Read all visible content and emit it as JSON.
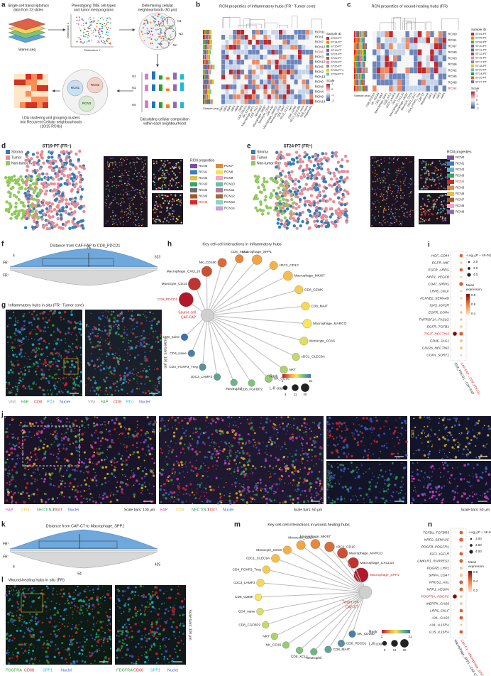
{
  "figure": {
    "a": {
      "letter": "a",
      "step1": [
        "Single-cell transcriptomics",
        "data from 23 slides"
      ],
      "stereo": "Stereo-seq",
      "step2": [
        "Phenotyping TME cell-types",
        "and tumor metaprograms"
      ],
      "dim2": "Dimension 2",
      "dim1": "Dimension 1",
      "step3": [
        "Determining cellular",
        "neighbourhoods (50 µm)"
      ],
      "neigh": [
        "N1",
        "N2",
        "Nn"
      ],
      "bars": [
        "N1",
        "N2",
        "Nn"
      ],
      "step4": [
        "Calculating cellular composition",
        "within each neighbourhood"
      ],
      "rcns": [
        "RCN1",
        "RCN2",
        "RCN3"
      ],
      "step5": [
        "LDA clustering and grouping clusters",
        "into Recurrent Cellular neighbourhoods",
        "(10/15 RCNs)"
      ]
    },
    "b": {
      "letter": "b",
      "title": "RCN properties of inflammatory hubs (FR⁻ Tumor core)",
      "rows": [
        "RCN11",
        "RCN1",
        "RCN7",
        "RCN12",
        "RCN6",
        "RCN3",
        "RCN10",
        "RCN5",
        "RCN2",
        "RCN13",
        "RCN0",
        "RCN8",
        "RCN4",
        "RCN9",
        "RCN14"
      ],
      "highlight": "RCN6",
      "columns": [
        "tMP1",
        "tMP2",
        "tMP3",
        "tMP4",
        "tMP5",
        "tMP6",
        "CD8_PDCD1",
        "NK_CD160",
        "Macrophage_SPP1",
        "CD8_XCL1",
        "Neutrophil",
        "Macrophage_MKI67",
        "Monocyte_CD14",
        "CAF-FAP",
        "Macrophage_MARCO",
        "Monocyte_CD16",
        "CD8_MAIT",
        "cDC2_CD1C",
        "NKT",
        "CD8_GZMK",
        "cDC1_CLEC9A",
        "CD4_naive",
        "CD8_naive",
        "Hepatocyte"
      ],
      "sample_prop": "Sample prop.",
      "sample_id": "Sample ID",
      "samples": [
        "ST09-PT",
        "ST14-PT",
        "ST15-PT",
        "ST19-PT",
        "ST21-PT",
        "ST22-PT",
        "ST23-PT",
        "ST26-PT",
        "ST28-PT1",
        "ST28-PT2"
      ],
      "sample_colors": [
        "#e41a1c",
        "#ff7f00",
        "#4daf4a",
        "#984ea3",
        "#377eb8",
        "#a65628",
        "#f781bf",
        "#8c8c8c",
        "#e6c600",
        "#66c2a5"
      ],
      "scale": "Scale",
      "scale_ticks": [
        "1",
        "0",
        "-1",
        "-2"
      ]
    },
    "c": {
      "letter": "c",
      "title": "RCN properties of wound-healing hubs (FR)",
      "rows": [
        "RCN0",
        "RCN1",
        "RCN7",
        "RCN9",
        "RCN3",
        "RCN6",
        "RCN2",
        "RCN5",
        "RCN8",
        "RCN4"
      ],
      "highlight": "RCN4",
      "columns": [
        "CD8_PDCD1",
        "NK_CD160",
        "CD8_MAIT",
        "Macrophage_SPP1",
        "CD8_XCL1",
        "cDC3_LAMP3",
        "CD4_naive",
        "Macrophage_CXCL10",
        "Macrophage_MKI67",
        "Monocyte_CD14",
        "cDC2_CD1C",
        "CD4_FOXP3_Treg",
        "CAF-C7",
        "Hepatocyte",
        "tMP1",
        "tMP2",
        "tMP3",
        "tMP4"
      ],
      "sample_prop": "Sample prop.",
      "sample_id": "Sample ID",
      "samples": [
        "ST04-PT",
        "ST05-PT",
        "ST08-PT",
        "ST10-PT",
        "ST11-PT",
        "ST12-PT",
        "ST16-PT",
        "ST17-PT",
        "ST18-PT",
        "ST20-PT",
        "ST24-PT",
        "ST25-PT",
        "ST27-PT"
      ],
      "sample_colors": [
        "#e41a1c",
        "#ff7f00",
        "#4daf4a",
        "#984ea3",
        "#377eb8",
        "#a65628",
        "#f781bf",
        "#8c8c8c",
        "#e6c600",
        "#66c2a5",
        "#1b9e77",
        "#d95f02",
        "#7570b3"
      ],
      "scale": "Scale",
      "scale_ticks": [
        "2",
        "1",
        "0",
        "-1",
        "-2"
      ]
    },
    "d": {
      "letter": "d",
      "title": "ST19-PT (FR⁻)",
      "tissue": [
        "Stroma",
        "Tumor",
        "Non-tumor liver"
      ],
      "tissue_colors": [
        "#2f7fba",
        "#e98a93",
        "#8fca5c"
      ],
      "rcn_title": "RCN properties",
      "rcns": [
        "RCN0",
        "RCN1",
        "RCN2",
        "RCN3",
        "RCN4",
        "RCN5",
        "RCN6",
        "RCN7",
        "RCN8",
        "RCN9",
        "RCN10",
        "RCN11",
        "RCN12",
        "RCN13",
        "RCN14"
      ],
      "rcn_colors": [
        "#7b4fa0",
        "#3d7fbf",
        "#e2c14a",
        "#3aa36a",
        "#6b6b6b",
        "#a8572a",
        "#d62728",
        "#d98c3a",
        "#f2e35c",
        "#f4a6c8",
        "#66c2a5",
        "#b07aa1",
        "#9c6b3c",
        "#8dd3c7",
        "#c9a0dc"
      ],
      "highlight": "RCN6"
    },
    "e": {
      "letter": "e",
      "title": "ST24-PT (FR⁺)",
      "tissue": [
        "Stroma",
        "Tumor",
        "Non-tumor liver"
      ],
      "tissue_colors": [
        "#2f7fba",
        "#e98a93",
        "#8fca5c"
      ],
      "rcn_title": "RCN properties",
      "rcns": [
        "RCN0",
        "RCN1",
        "RCN2",
        "RCN3",
        "RCN4",
        "RCN5",
        "RCN6",
        "RCN7",
        "RCN8",
        "RCN9"
      ],
      "rcn_colors": [
        "#7b4fa0",
        "#3d7fbf",
        "#5fb0d8",
        "#3aa36a",
        "#d62728",
        "#d98c3a",
        "#e2c14a",
        "#a8572a",
        "#f4a6c8",
        "#8c6bb1"
      ],
      "highlight": "RCN4"
    },
    "f": {
      "letter": "f",
      "title": "Distance from CAF-FAP to CD8_PDCD1",
      "groups": [
        "FR⁻",
        "FR⁺"
      ],
      "min": "4",
      "median": "75",
      "max": "623"
    },
    "g": {
      "letter": "g",
      "title": "Inflammatory hubs in situ (FR⁻ Tumor core)",
      "channels": [
        "VIM",
        "FAP",
        "CD8",
        "PD1",
        "Nuclei"
      ],
      "channel_colors": [
        "#9a9a9a",
        "#2ca02c",
        "#d62728",
        "#17becf",
        "#3f5fd0"
      ],
      "scale_bars": "Scale bars: 100 µm"
    },
    "h": {
      "letter": "h",
      "title": "Key cell-cell interactions in inflammatory hubs",
      "center": [
        "Source cell",
        "CAF-FAP"
      ],
      "nodes": [
        "CD8_PDCD1",
        "Monocyte_CD14",
        "Macrophage_CXCL10",
        "NK_CD160",
        "CD8_XCL1",
        "Macrophage_SPP1",
        "cDC2_CD1C",
        "Macrophage_MKI67",
        "CD8_GZMK",
        "CD8_MAIT",
        "Macrophage_MARCO",
        "Monocyte_CD16",
        "cDC1_CLEC9A",
        "NKT",
        "NK_CD16",
        "CD8_FGFBP2",
        "Neutrophil",
        "cDC3_LAMP3",
        "CD4_FOXP3_Treg",
        "CD4_naive",
        "CD8_naive"
      ],
      "highlight": "CD8_PDCD1",
      "ranks": [
        1,
        2,
        3,
        4,
        5,
        6,
        7,
        8,
        9,
        10,
        11,
        12,
        13,
        14,
        15,
        16,
        17,
        18,
        19,
        20,
        21
      ],
      "lr_counts": [
        20,
        14,
        9,
        6,
        5,
        8,
        5,
        7,
        5,
        5,
        6,
        5,
        4,
        4,
        4,
        3,
        3,
        3,
        3,
        3,
        3
      ],
      "rank_title": "Rank",
      "rank_range": [
        1,
        21
      ],
      "count_title": "L-R count",
      "count_ticks": [
        3,
        11,
        20
      ]
    },
    "i": {
      "letter": "i",
      "pairs": [
        "HGF_CD44",
        "EGFR_MIF",
        "EGFR_AREG",
        "NRP1_VEGFB",
        "CD47_SIRPG",
        "LRP6_CKLF",
        "PLXNB2_SEMA4D",
        "IGF2_IGF2R",
        "EGFR_COPA",
        "TNFRSF1A_FASLG",
        "EGFR_TGFB1",
        "TIGIT_NECTIN2",
        "CD46_JAG1",
        "CD226_NECTIN2",
        "COPA_SORT1"
      ],
      "highlight": "TIGIT_NECTIN2",
      "pval_title": "-Log₁₀(P + 1E-04)",
      "pval_ticks": [
        "2.0",
        "3.0",
        "4.0"
      ],
      "expr_title": [
        "Mean",
        "expression"
      ],
      "expr_ticks": [
        "0.8",
        "0.6",
        "0.4"
      ],
      "columns": [
        "CD8_PDCD1→CAF-FAP",
        "CAF-FAP→CD8_PDCD1"
      ]
    },
    "j": {
      "letter": "j",
      "channels": [
        "FAP",
        "CD3",
        "NECTIN-2",
        "TIGIT",
        "Nuclei"
      ],
      "channel_colors": [
        "#e040c0",
        "#e8c020",
        "#2ca05a",
        "#d62728",
        "#3f5fd0"
      ],
      "scale_left": "Scale bars: 100 µm",
      "scale_mid": "Scale bars: 50 µm",
      "scale_right": "Scale bars: 50 µm",
      "insets": [
        "TIGIT",
        "CD3",
        "NECTIN-2",
        "FAP"
      ]
    },
    "k": {
      "letter": "k",
      "title": "Distance from CAF-C7 to Macrophage_SPP1",
      "groups": [
        "FR⁺",
        "FR⁻"
      ],
      "min": "6",
      "median": "54",
      "max": "425"
    },
    "l": {
      "letter": "l",
      "title": "Wound-healing hubs in situ (FR)",
      "channels": [
        "PDGFRA",
        "CD68",
        "SPP1",
        "Nuclei"
      ],
      "channel_colors": [
        "#2ca02c",
        "#d62728",
        "#17becf",
        "#3f5fd0"
      ],
      "scale_bars": "Scale bars: 100 µm"
    },
    "m": {
      "letter": "m",
      "title": "Key cell-cell interactions in wound-healing hubs",
      "center": [
        "Target cell",
        "CAF-C7"
      ],
      "nodes": [
        "Macrophage_SPP1",
        "Macrophage_CXCL10",
        "Macrophage_MARCO",
        "cDC2_CD1C",
        "Macrophage_MKI67",
        "Monocyte_CD14",
        "Monocyte_CD16",
        "cDC1_CLEC9A",
        "CD4_FOXP3_Treg",
        "cDC3_LAMP3",
        "CD8_GZMK",
        "CD4_naive",
        "CD8_FGFBP2",
        "NKT",
        "NK_CD16",
        "CD8_XCL1",
        "Neutrophil",
        "CD8_MAIT",
        "CD8_PDCD1",
        "NK_CD160"
      ],
      "highlight": "Macrophage_SPP1",
      "ranks": [
        1,
        2,
        3,
        4,
        5,
        6,
        7,
        8,
        9,
        10,
        11,
        12,
        13,
        14,
        15,
        16,
        17,
        18,
        19,
        20
      ],
      "lr_counts": [
        20,
        10,
        9,
        8,
        7,
        6,
        5,
        5,
        4,
        4,
        3,
        3,
        3,
        3,
        3,
        3,
        3,
        3,
        3,
        3
      ],
      "rank_title": "Rank",
      "rank_range": [
        1,
        21
      ],
      "count_title": "L-R count",
      "count_ticks": [
        3,
        11,
        20
      ]
    },
    "n": {
      "letter": "n",
      "pairs": [
        "TGFB1_TGFBR3",
        "NRP2_SEMA3C",
        "PDGFB_PDGFRA",
        "IGF1_IGF1R",
        "CMKLR1_RARRES2",
        "PDGFB_LRP1",
        "SIRPA_CD47",
        "PROS1_AXL",
        "NRP1_VEGFA",
        "PDGFRA_PDGFC",
        "MERTK_GAS6",
        "LRP6_CKLF",
        "AXL_GAS6",
        "AXL_IL15RA",
        "IL15_IL15RA"
      ],
      "highlight": "PDGFRA_PDGFC",
      "pval_title": "-Log₁₀(P + 1E-04)",
      "pval_ticks": [
        "3.00",
        "3.50",
        "4.00"
      ],
      "expr_title": [
        "Mean",
        "expression"
      ],
      "expr_ticks": [
        "0.6",
        "0.4",
        "0.2"
      ],
      "columns": [
        "Macrophage_SPP1→CAF-C7",
        "CAF-C7→Macrophage_SPP1"
      ]
    }
  }
}
